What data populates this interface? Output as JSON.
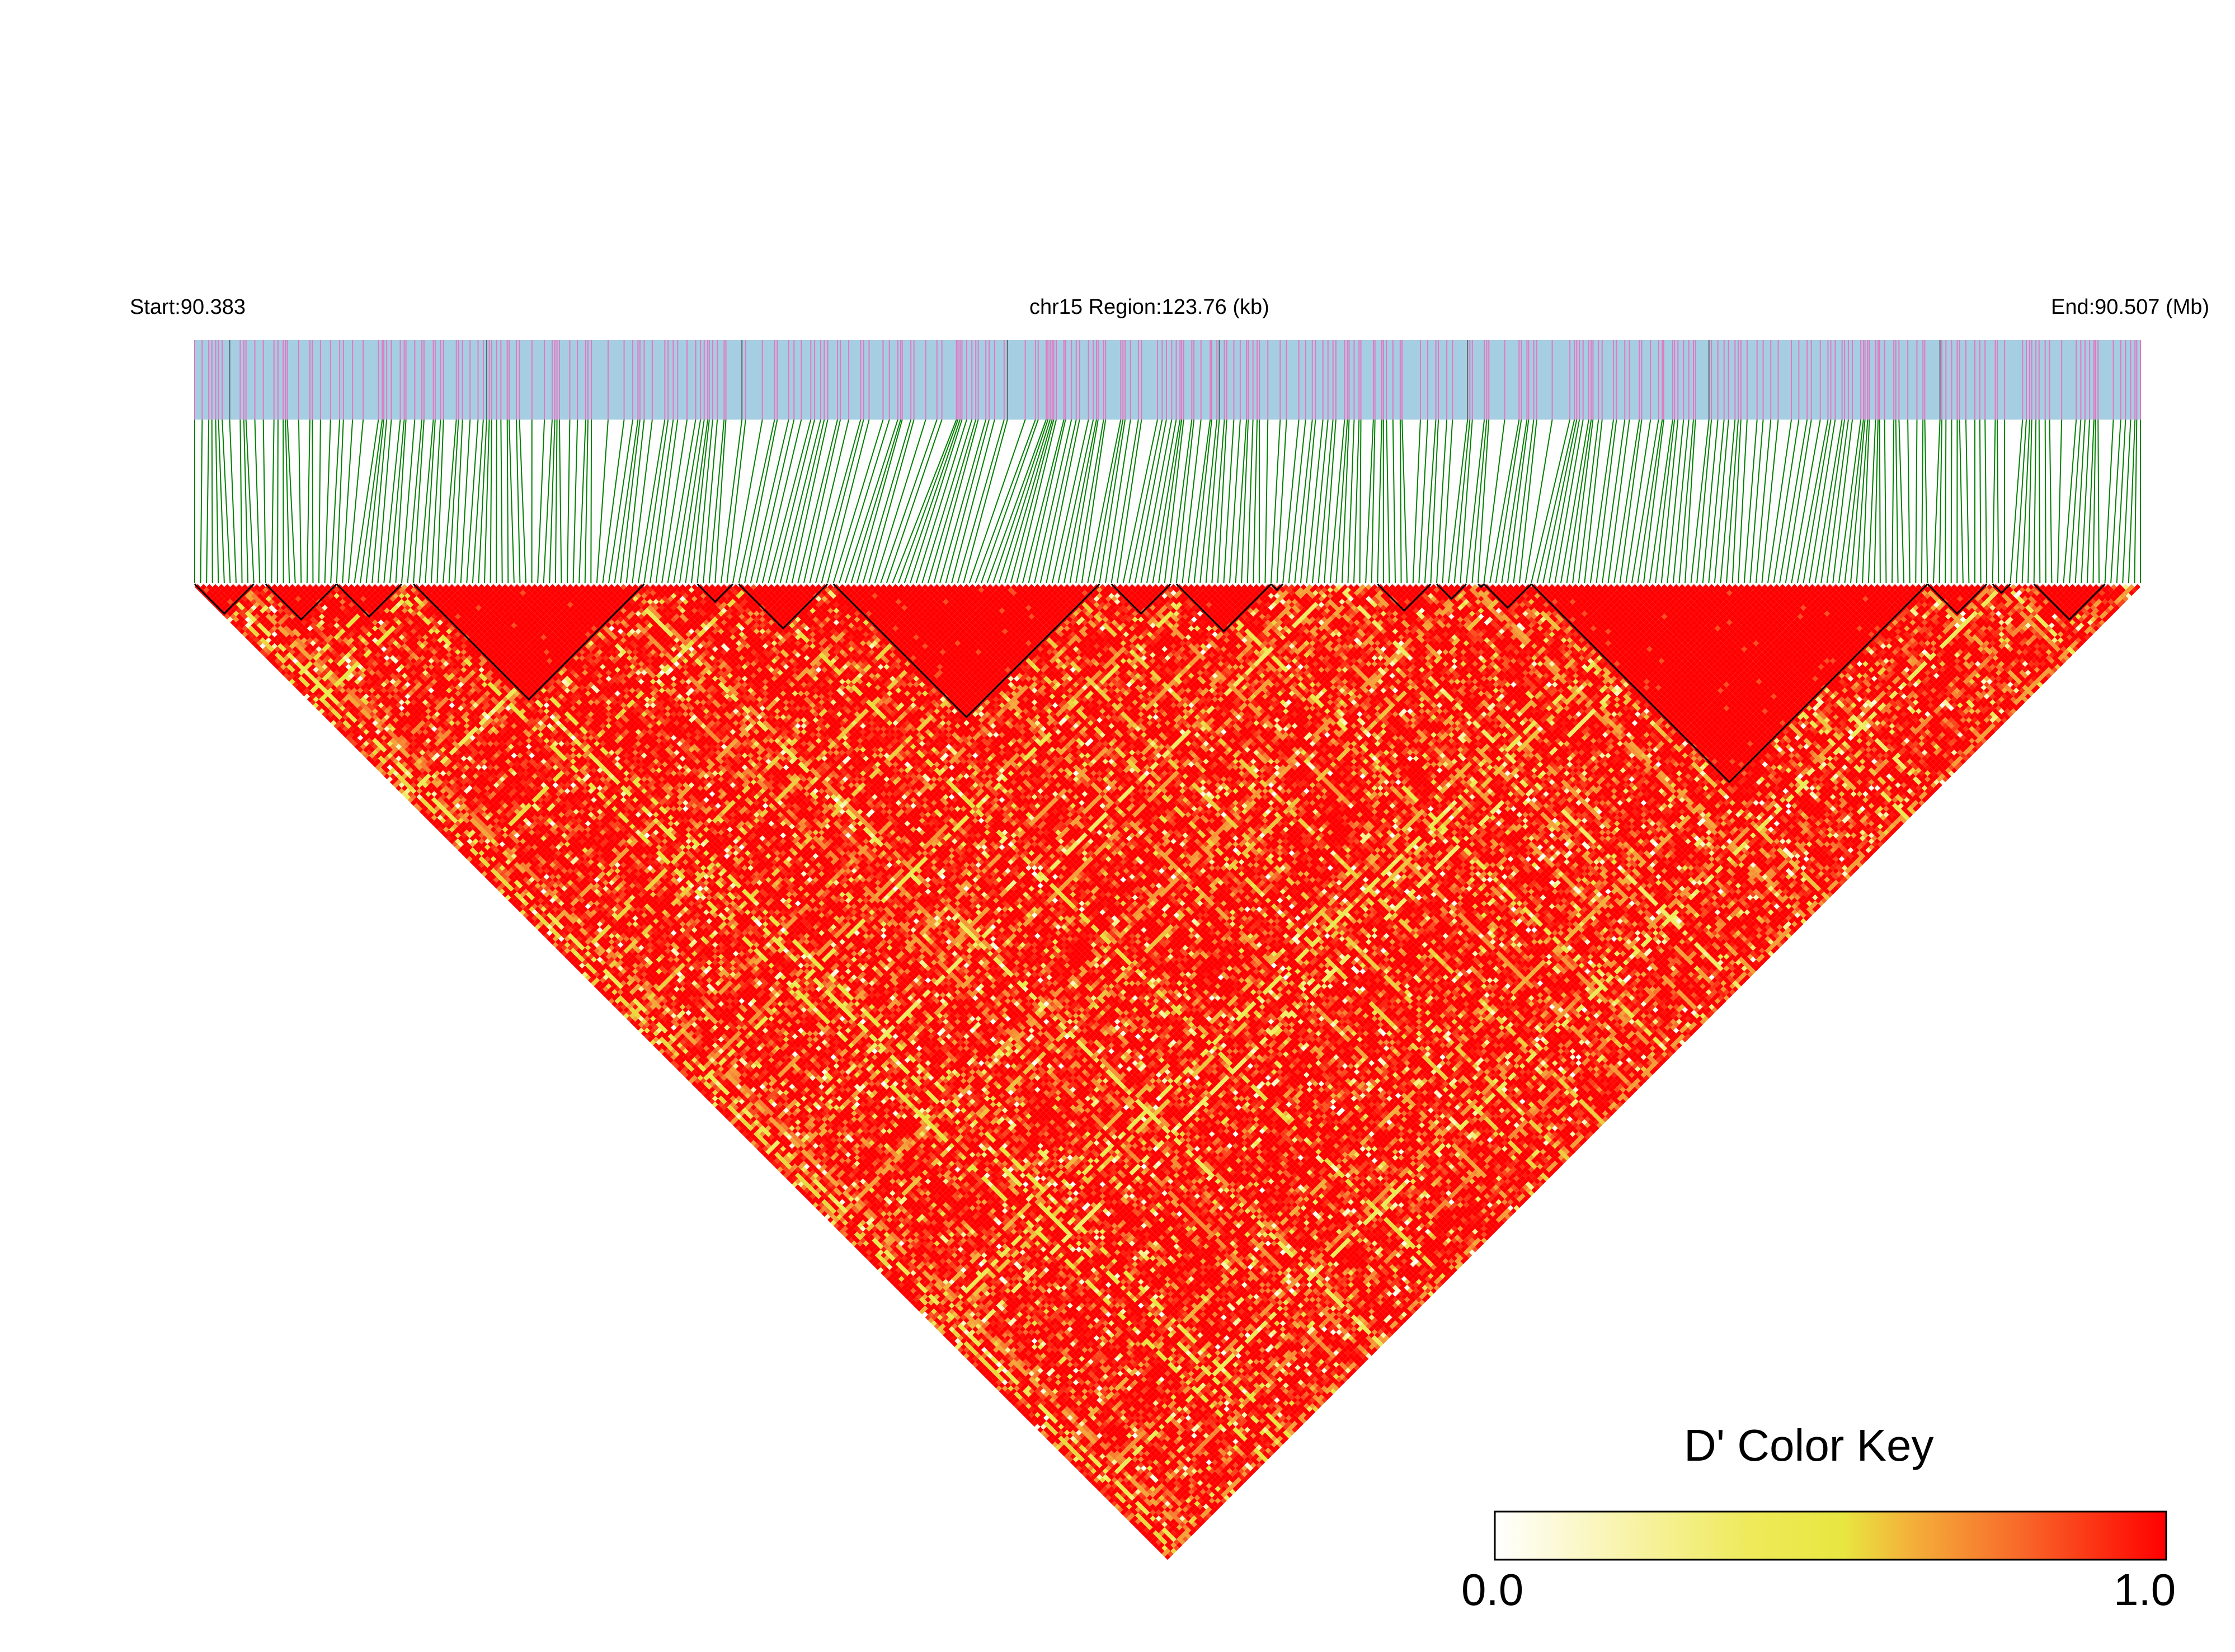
{
  "chart_data": {
    "type": "heatmap",
    "subtype": "linkage-disequilibrium-triangle",
    "header": {
      "start_label": "Start:90.383",
      "region_label": "chr15 Region:123.76 (kb)",
      "end_label": "End:90.507 (Mb)"
    },
    "region": {
      "chromosome": "chr15",
      "start_mb": 90.383,
      "end_mb": 90.507,
      "length_kb": 123.76
    },
    "metric": "D'",
    "color_key": {
      "title": "D' Color Key",
      "min_label": "0.0",
      "max_label": "1.0",
      "range": [
        0.0,
        1.0
      ],
      "colors": [
        "#ffffff",
        "#f5f07a",
        "#e8e640",
        "#f4a83a",
        "#f86a2a",
        "#ff0000"
      ]
    },
    "colors": {
      "snp_track": "#a6cee3",
      "snp_tick": "#e377c2",
      "snp_tick_dark": "#5a6a6a",
      "connector": "#008000",
      "block_outline": "#000000",
      "high_ld": "#ff0000"
    },
    "approx_snp_count": 330,
    "overall_pattern": "predominantly high D' (strong LD, mostly 0.8-1.0) across the full region with scattered lower-D' (yellow/white) cells",
    "haplotype_blocks_mb": [
      [
        90.383,
        90.3863
      ],
      [
        90.3873,
        90.3925
      ],
      [
        90.3927,
        90.3969
      ],
      [
        90.3977,
        90.4133
      ],
      [
        90.416,
        90.4194
      ],
      [
        90.42,
        90.4262
      ],
      [
        90.4266,
        90.4424
      ],
      [
        90.443,
        90.4464
      ],
      [
        90.4469,
        90.4519
      ],
      [
        90.4521,
        90.4531
      ],
      [
        90.4587,
        90.4624
      ],
      [
        90.4627,
        90.4649
      ],
      [
        90.4656,
        90.4667
      ],
      [
        90.4667,
        90.4703
      ],
      [
        90.4703,
        90.4934
      ],
      [
        90.4936,
        90.4973
      ],
      [
        90.4977,
        90.4996
      ],
      [
        90.5003,
        90.5052
      ]
    ]
  }
}
